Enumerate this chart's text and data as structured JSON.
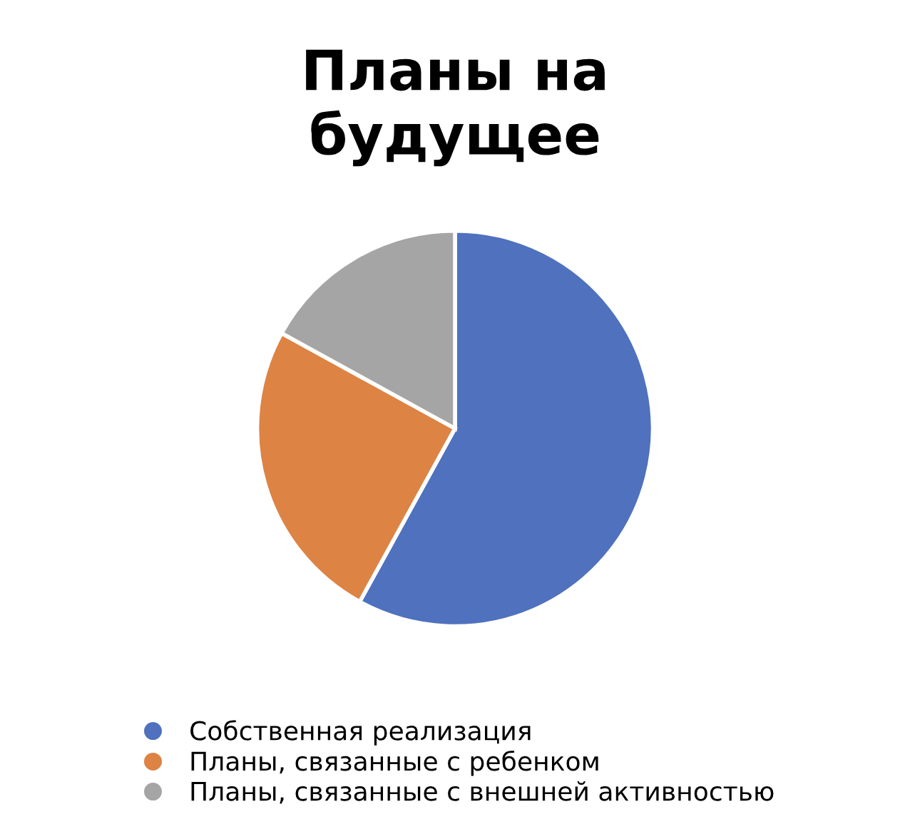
{
  "chart_data": {
    "type": "pie",
    "title": "Планы на\nбудущее",
    "categories": [
      "Собственная реализация",
      "Планы, связанные с ребенком",
      "Планы, связанные с внешней активностью"
    ],
    "values": [
      58,
      25,
      17
    ],
    "colors": [
      "#4f71be",
      "#dd8344",
      "#a5a5a5"
    ],
    "legend": "bottom"
  }
}
